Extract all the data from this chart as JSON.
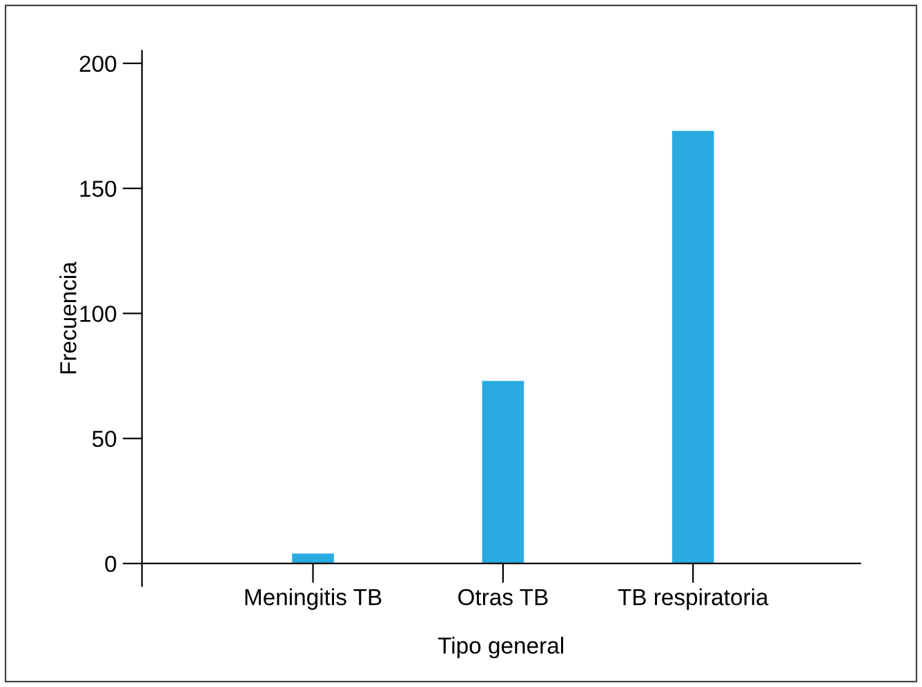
{
  "chart_data": {
    "type": "bar",
    "xlabel": "Tipo general",
    "ylabel": "Frecuencia",
    "categories": [
      "Meningitis TB",
      "Otras TB",
      "TB respiratoria"
    ],
    "values": [
      4,
      73,
      173
    ],
    "color": "#29abe2",
    "ylim": [
      -9,
      205
    ],
    "yticks": [
      0,
      50,
      100,
      150,
      200
    ],
    "grid": false,
    "legend": false
  }
}
